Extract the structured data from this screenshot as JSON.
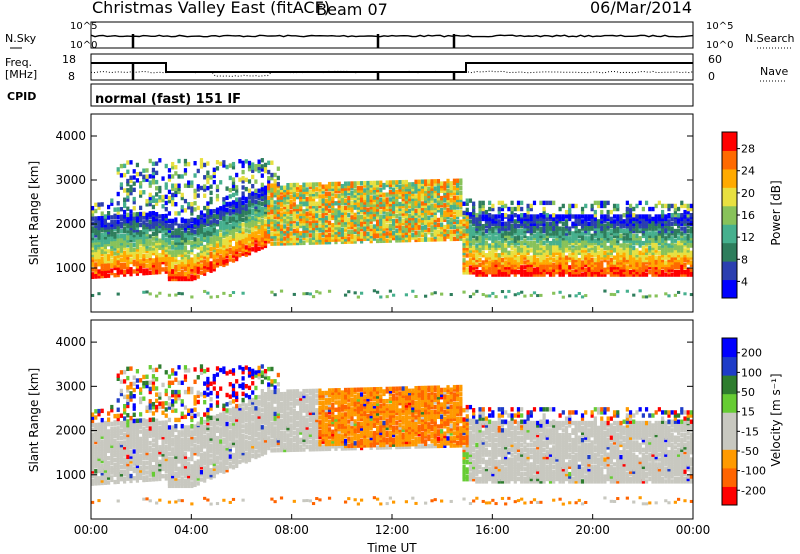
{
  "header": {
    "radar": "Christmas Valley East (fitACF)",
    "beam": "Beam 07",
    "date": "06/Mar/2014",
    "cpid_label": "CPID",
    "cpid_value": "normal (fast) 151 IF"
  },
  "strip_labels": {
    "nsky": "N.Sky",
    "nsearch": "N.Search",
    "freq": "Freq.",
    "freq_unit": "[MHz]",
    "nave": "Nave"
  },
  "strip_ticks": {
    "nsky_left": [
      "10^5",
      "10^0"
    ],
    "nsky_right": [
      "10^5",
      "10^0"
    ],
    "freq_left": [
      "18",
      "8"
    ],
    "nave_right": [
      "60",
      "0"
    ]
  },
  "x_axis": {
    "label": "Time UT",
    "ticks": [
      "00:00",
      "04:00",
      "08:00",
      "12:00",
      "16:00",
      "20:00",
      "00:00"
    ]
  },
  "colors": {
    "power": [
      "#0000ff",
      "#2b3fb0",
      "#2e7d5c",
      "#46b08e",
      "#88c25a",
      "#e8e040",
      "#ffaa00",
      "#ff6a00",
      "#ff0000"
    ],
    "velocity": [
      "#ff0000",
      "#ff6400",
      "#ff9a00",
      "#c8c8c0",
      "#c8c8c0",
      "#66cc33",
      "#2e7d2e",
      "#1e3cc8",
      "#0000ff"
    ]
  },
  "chart_data": [
    {
      "type": "heatmap",
      "name": "power",
      "ylabel": "Slant Range [km]",
      "xlabel": "",
      "x_range_hours": [
        0,
        24
      ],
      "ylim": [
        0,
        4500
      ],
      "yticks": [
        "1000",
        "2000",
        "3000",
        "4000"
      ],
      "colorbar_label": "Power [dB]",
      "colorbar_ticks": [
        "4",
        "8",
        "12",
        "16",
        "20",
        "24",
        "28"
      ],
      "colorbar_range": [
        0,
        32
      ]
    },
    {
      "type": "heatmap",
      "name": "velocity",
      "ylabel": "Slant Range [km]",
      "xlabel": "Time UT",
      "x_range_hours": [
        0,
        24
      ],
      "ylim": [
        0,
        4500
      ],
      "yticks": [
        "1000",
        "2000",
        "3000",
        "4000"
      ],
      "colorbar_label": "Velocity [m s⁻¹]",
      "colorbar_ticks": [
        "200",
        "100",
        "50",
        "15",
        "-15",
        "-50",
        "-100",
        "-200"
      ],
      "colorbar_range": [
        -250,
        250
      ]
    }
  ]
}
